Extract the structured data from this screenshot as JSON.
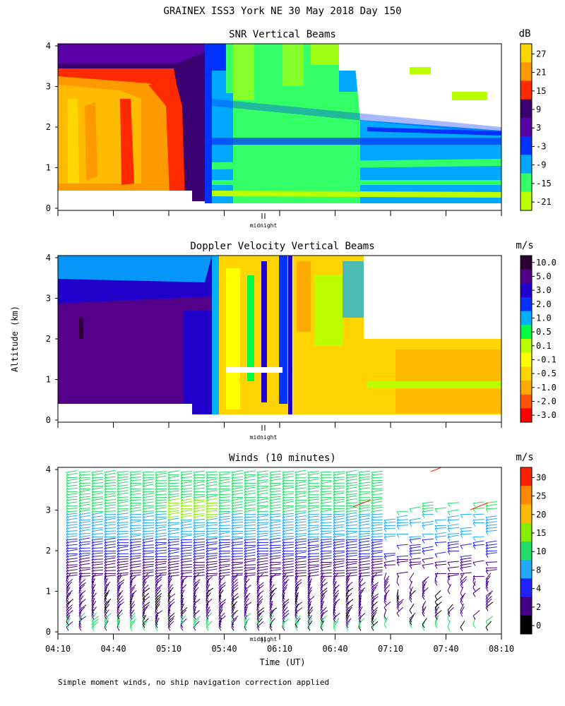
{
  "figure": {
    "title": "GRAINEX ISS3 York NE  30 May 2018 Day 150",
    "ylabel": "Altitude (km)",
    "xlabel": "Time (UT)",
    "footnote": "Simple moment winds, no ship navigation correction applied",
    "midnight_label": "midnight"
  },
  "chart_data": [
    {
      "type": "heatmap",
      "title": "SNR Vertical Beams",
      "ylabel": "Altitude (km)",
      "y_ticks": [
        "0",
        "1",
        "2",
        "3",
        "4"
      ],
      "ylim": [
        0,
        4
      ],
      "colorbar": {
        "unit": "dB",
        "tick_labels": [
          "27",
          "21",
          "15",
          "9",
          "3",
          "-3",
          "-9",
          "-15",
          "-21"
        ],
        "colors": [
          "#ffd700",
          "#ff9900",
          "#ff2a00",
          "#3a006f",
          "#5a00a8",
          "#0033ff",
          "#00a8ff",
          "#33ff66",
          "#bbff00"
        ]
      }
    },
    {
      "type": "heatmap",
      "title": "Doppler Velocity Vertical Beams",
      "ylabel": "Altitude (km)",
      "y_ticks": [
        "0",
        "1",
        "2",
        "3",
        "4"
      ],
      "ylim": [
        0,
        4
      ],
      "colorbar": {
        "unit": "m/s",
        "tick_labels": [
          "10.0",
          "5.0",
          "3.0",
          "2.0",
          "1.0",
          "0.5",
          "0.1",
          "-0.1",
          "-0.5",
          "-1.0",
          "-2.0",
          "-3.0"
        ],
        "colors": [
          "#2b0033",
          "#55008a",
          "#2200cc",
          "#0033ff",
          "#00b0ff",
          "#00ff44",
          "#bbff00",
          "#ffff00",
          "#ffd400",
          "#ffaa00",
          "#ff5500",
          "#ff0000"
        ]
      }
    },
    {
      "type": "scatter",
      "title": "Winds (10 minutes)",
      "ylabel": "Altitude (km)",
      "xlabel": "Time (UT)",
      "y_ticks": [
        "0",
        "1",
        "2",
        "3",
        "4"
      ],
      "ylim": [
        0,
        4
      ],
      "x_ticks": [
        "04:10",
        "04:40",
        "05:10",
        "05:40",
        "06:10",
        "06:40",
        "07:10",
        "07:40",
        "08:10"
      ],
      "colorbar": {
        "unit": "m/s",
        "tick_labels": [
          "30",
          "25",
          "20",
          "15",
          "10",
          "8",
          "4",
          "2",
          "0"
        ],
        "colors": [
          "#ff2200",
          "#ff8800",
          "#ffbb00",
          "#88ee00",
          "#22dd66",
          "#22aaff",
          "#2222ff",
          "#440088",
          "#000000"
        ]
      }
    }
  ]
}
